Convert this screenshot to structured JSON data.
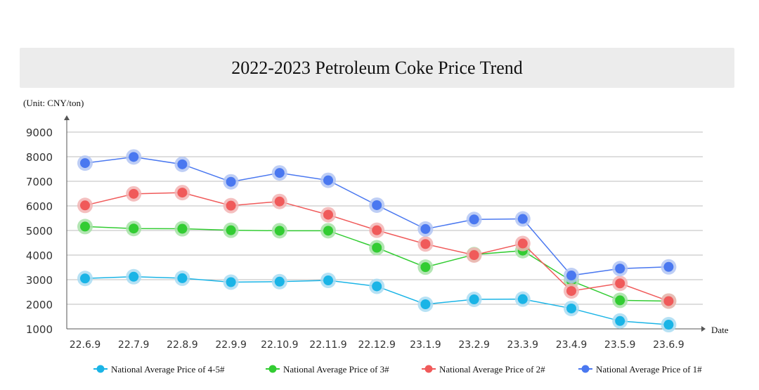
{
  "chart_data": {
    "type": "line",
    "title": "2022-2023 Petroleum Coke Price Trend",
    "unit_label": "(Unit: CNY/ton)",
    "xlabel": "Date",
    "ylabel": "",
    "ylim": [
      1000,
      9000
    ],
    "yticks": [
      1000,
      2000,
      3000,
      4000,
      5000,
      6000,
      7000,
      8000,
      9000
    ],
    "grid": true,
    "legend_position": "bottom",
    "categories": [
      "22.6.9",
      "22.7.9",
      "22.8.9",
      "22.9.9",
      "22.10.9",
      "22.11.9",
      "22.12.9",
      "23.1.9",
      "23.2.9",
      "23.3.9",
      "23.4.9",
      "23.5.9",
      "23.6.9"
    ],
    "series": [
      {
        "name": "National Average Price of 4-5#",
        "color": "#1ab4e6",
        "halo": "#a9dcf2",
        "values": [
          3050,
          3120,
          3060,
          2900,
          2920,
          2970,
          2730,
          2000,
          2200,
          2210,
          1830,
          1320,
          1170
        ]
      },
      {
        "name": "National Average Price of 3#",
        "color": "#32cc32",
        "halo": "#a6e2a6",
        "values": [
          5160,
          5080,
          5070,
          5010,
          4990,
          4990,
          4300,
          3510,
          4020,
          4180,
          2950,
          2160,
          2130
        ]
      },
      {
        "name": "National Average Price of 2#",
        "color": "#f05a5a",
        "halo": "#f2b4b4",
        "values": [
          6020,
          6490,
          6540,
          6010,
          6180,
          5640,
          5010,
          4450,
          4000,
          4470,
          2540,
          2850,
          2130
        ]
      },
      {
        "name": "National Average Price of 1#",
        "color": "#4a78f0",
        "halo": "#b3c6f3",
        "values": [
          7740,
          7990,
          7690,
          6980,
          7340,
          7040,
          6030,
          5060,
          5450,
          5470,
          3170,
          3450,
          3520
        ]
      }
    ]
  }
}
